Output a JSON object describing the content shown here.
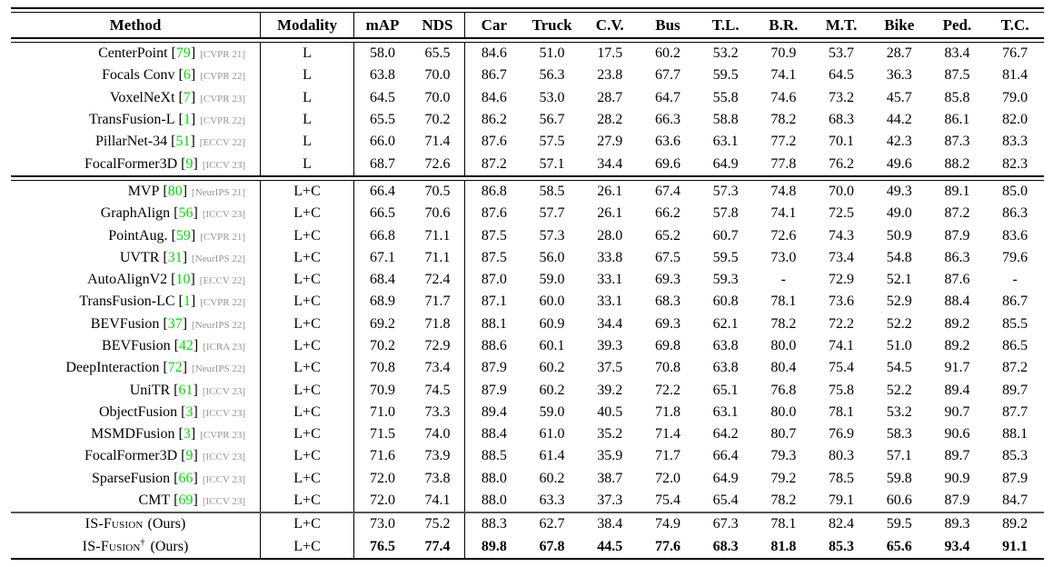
{
  "format": {
    "bracket_open": "[",
    "bracket_close": "]"
  },
  "colors": {
    "ref_green": "#00dd00",
    "venue_gray": "#949494",
    "rule_black": "#000000",
    "rule_gray": "#555555"
  },
  "table": {
    "columns": [
      "Method",
      "Modality",
      "mAP",
      "NDS",
      "Car",
      "Truck",
      "C.V.",
      "Bus",
      "T.L.",
      "B.R.",
      "M.T.",
      "Bike",
      "Ped.",
      "T.C."
    ],
    "sections": [
      {
        "name": "lidar-only",
        "rows": [
          {
            "method": "CenterPoint",
            "ref": "79",
            "venue": "[CVPR 21]",
            "modality": "L",
            "values": [
              "58.0",
              "65.5",
              "84.6",
              "51.0",
              "17.5",
              "60.2",
              "53.2",
              "70.9",
              "53.7",
              "28.7",
              "83.4",
              "76.7"
            ],
            "bold": false,
            "smallcaps": false,
            "sup": "",
            "suffix": "",
            "center": false
          },
          {
            "method": "Focals Conv",
            "ref": "6",
            "venue": "[CVPR 22]",
            "modality": "L",
            "values": [
              "63.8",
              "70.0",
              "86.7",
              "56.3",
              "23.8",
              "67.7",
              "59.5",
              "74.1",
              "64.5",
              "36.3",
              "87.5",
              "81.4"
            ],
            "bold": false,
            "smallcaps": false,
            "sup": "",
            "suffix": "",
            "center": false
          },
          {
            "method": "VoxelNeXt",
            "ref": "7",
            "venue": "[CVPR 23]",
            "modality": "L",
            "values": [
              "64.5",
              "70.0",
              "84.6",
              "53.0",
              "28.7",
              "64.7",
              "55.8",
              "74.6",
              "73.2",
              "45.7",
              "85.8",
              "79.0"
            ],
            "bold": false,
            "smallcaps": false,
            "sup": "",
            "suffix": "",
            "center": false
          },
          {
            "method": "TransFusion-L",
            "ref": "1",
            "venue": "[CVPR 22]",
            "modality": "L",
            "values": [
              "65.5",
              "70.2",
              "86.2",
              "56.7",
              "28.2",
              "66.3",
              "58.8",
              "78.2",
              "68.3",
              "44.2",
              "86.1",
              "82.0"
            ],
            "bold": false,
            "smallcaps": false,
            "sup": "",
            "suffix": "",
            "center": false
          },
          {
            "method": "PillarNet-34",
            "ref": "51",
            "venue": "[ECCV 22]",
            "modality": "L",
            "values": [
              "66.0",
              "71.4",
              "87.6",
              "57.5",
              "27.9",
              "63.6",
              "63.1",
              "77.2",
              "70.1",
              "42.3",
              "87.3",
              "83.3"
            ],
            "bold": false,
            "smallcaps": false,
            "sup": "",
            "suffix": "",
            "center": false
          },
          {
            "method": "FocalFormer3D",
            "ref": "9",
            "venue": "[ICCV 23]",
            "modality": "L",
            "values": [
              "68.7",
              "72.6",
              "87.2",
              "57.1",
              "34.4",
              "69.6",
              "64.9",
              "77.8",
              "76.2",
              "49.6",
              "88.2",
              "82.3"
            ],
            "bold": false,
            "smallcaps": false,
            "sup": "",
            "suffix": "",
            "center": false
          }
        ]
      },
      {
        "name": "lidar-camera",
        "rows": [
          {
            "method": "MVP",
            "ref": "80",
            "venue": "[NeurIPS 21]",
            "modality": "L+C",
            "values": [
              "66.4",
              "70.5",
              "86.8",
              "58.5",
              "26.1",
              "67.4",
              "57.3",
              "74.8",
              "70.0",
              "49.3",
              "89.1",
              "85.0"
            ],
            "bold": false,
            "smallcaps": false,
            "sup": "",
            "suffix": "",
            "center": false
          },
          {
            "method": "GraphAlign",
            "ref": "56",
            "venue": "[ICCV 23]",
            "modality": "L+C",
            "values": [
              "66.5",
              "70.6",
              "87.6",
              "57.7",
              "26.1",
              "66.2",
              "57.8",
              "74.1",
              "72.5",
              "49.0",
              "87.2",
              "86.3"
            ],
            "bold": false,
            "smallcaps": false,
            "sup": "",
            "suffix": "",
            "center": false
          },
          {
            "method": "PointAug.",
            "ref": "59",
            "venue": "[CVPR 21]",
            "modality": "L+C",
            "values": [
              "66.8",
              "71.1",
              "87.5",
              "57.3",
              "28.0",
              "65.2",
              "60.7",
              "72.6",
              "74.3",
              "50.9",
              "87.9",
              "83.6"
            ],
            "bold": false,
            "smallcaps": false,
            "sup": "",
            "suffix": "",
            "center": false
          },
          {
            "method": "UVTR",
            "ref": "31",
            "venue": "[NeurIPS 22]",
            "modality": "L+C",
            "values": [
              "67.1",
              "71.1",
              "87.5",
              "56.0",
              "33.8",
              "67.5",
              "59.5",
              "73.0",
              "73.4",
              "54.8",
              "86.3",
              "79.6"
            ],
            "bold": false,
            "smallcaps": false,
            "sup": "",
            "suffix": "",
            "center": false
          },
          {
            "method": "AutoAlignV2",
            "ref": "10",
            "venue": "[ECCV 22]",
            "modality": "L+C",
            "values": [
              "68.4",
              "72.4",
              "87.0",
              "59.0",
              "33.1",
              "69.3",
              "59.3",
              "-",
              "72.9",
              "52.1",
              "87.6",
              "-"
            ],
            "bold": false,
            "smallcaps": false,
            "sup": "",
            "suffix": "",
            "center": false
          },
          {
            "method": "TransFusion-LC",
            "ref": "1",
            "venue": "[CVPR 22]",
            "modality": "L+C",
            "values": [
              "68.9",
              "71.7",
              "87.1",
              "60.0",
              "33.1",
              "68.3",
              "60.8",
              "78.1",
              "73.6",
              "52.9",
              "88.4",
              "86.7"
            ],
            "bold": false,
            "smallcaps": false,
            "sup": "",
            "suffix": "",
            "center": false
          },
          {
            "method": "BEVFusion",
            "ref": "37",
            "venue": "[NeurIPS 22]",
            "modality": "L+C",
            "values": [
              "69.2",
              "71.8",
              "88.1",
              "60.9",
              "34.4",
              "69.3",
              "62.1",
              "78.2",
              "72.2",
              "52.2",
              "89.2",
              "85.5"
            ],
            "bold": false,
            "smallcaps": false,
            "sup": "",
            "suffix": "",
            "center": false
          },
          {
            "method": "BEVFusion",
            "ref": "42",
            "venue": "[ICRA 23]",
            "modality": "L+C",
            "values": [
              "70.2",
              "72.9",
              "88.6",
              "60.1",
              "39.3",
              "69.8",
              "63.8",
              "80.0",
              "74.1",
              "51.0",
              "89.2",
              "86.5"
            ],
            "bold": false,
            "smallcaps": false,
            "sup": "",
            "suffix": "",
            "center": false
          },
          {
            "method": "DeepInteraction",
            "ref": "72",
            "venue": "[NeurIPS 22]",
            "modality": "L+C",
            "values": [
              "70.8",
              "73.4",
              "87.9",
              "60.2",
              "37.5",
              "70.8",
              "63.8",
              "80.4",
              "75.4",
              "54.5",
              "91.7",
              "87.2"
            ],
            "bold": false,
            "smallcaps": false,
            "sup": "",
            "suffix": "",
            "center": false
          },
          {
            "method": "UniTR",
            "ref": "61",
            "venue": "[ICCV 23]",
            "modality": "L+C",
            "values": [
              "70.9",
              "74.5",
              "87.9",
              "60.2",
              "39.2",
              "72.2",
              "65.1",
              "76.8",
              "75.8",
              "52.2",
              "89.4",
              "89.7"
            ],
            "bold": false,
            "smallcaps": false,
            "sup": "",
            "suffix": "",
            "center": false
          },
          {
            "method": "ObjectFusion",
            "ref": "3",
            "venue": "[ICCV 23]",
            "modality": "L+C",
            "values": [
              "71.0",
              "73.3",
              "89.4",
              "59.0",
              "40.5",
              "71.8",
              "63.1",
              "80.0",
              "78.1",
              "53.2",
              "90.7",
              "87.7"
            ],
            "bold": false,
            "smallcaps": false,
            "sup": "",
            "suffix": "",
            "center": false
          },
          {
            "method": "MSMDFusion",
            "ref": "3",
            "venue": "[CVPR 23]",
            "modality": "L+C",
            "values": [
              "71.5",
              "74.0",
              "88.4",
              "61.0",
              "35.2",
              "71.4",
              "64.2",
              "80.7",
              "76.9",
              "58.3",
              "90.6",
              "88.1"
            ],
            "bold": false,
            "smallcaps": false,
            "sup": "",
            "suffix": "",
            "center": false
          },
          {
            "method": "FocalFormer3D",
            "ref": "9",
            "venue": "[ICCV 23]",
            "modality": "L+C",
            "values": [
              "71.6",
              "73.9",
              "88.5",
              "61.4",
              "35.9",
              "71.7",
              "66.4",
              "79.3",
              "80.3",
              "57.1",
              "89.7",
              "85.3"
            ],
            "bold": false,
            "smallcaps": false,
            "sup": "",
            "suffix": "",
            "center": false
          },
          {
            "method": "SparseFusion",
            "ref": "66",
            "venue": "[ICCV 23]",
            "modality": "L+C",
            "values": [
              "72.0",
              "73.8",
              "88.0",
              "60.2",
              "38.7",
              "72.0",
              "64.9",
              "79.2",
              "78.5",
              "59.8",
              "90.9",
              "87.9"
            ],
            "bold": false,
            "smallcaps": false,
            "sup": "",
            "suffix": "",
            "center": false
          },
          {
            "method": "CMT",
            "ref": "69",
            "venue": "[ICCV 23]",
            "modality": "L+C",
            "values": [
              "72.0",
              "74.1",
              "88.0",
              "63.3",
              "37.3",
              "75.4",
              "65.4",
              "78.2",
              "79.1",
              "60.6",
              "87.9",
              "84.7"
            ],
            "bold": false,
            "smallcaps": false,
            "sup": "",
            "suffix": "",
            "center": false
          }
        ]
      },
      {
        "name": "ours",
        "rows": [
          {
            "method": "IS-Fusion",
            "ref": "",
            "venue": "",
            "modality": "L+C",
            "values": [
              "73.0",
              "75.2",
              "88.3",
              "62.7",
              "38.4",
              "74.9",
              "67.3",
              "78.1",
              "82.4",
              "59.5",
              "89.3",
              "89.2"
            ],
            "bold": false,
            "smallcaps": true,
            "sup": "",
            "suffix": "(Ours)",
            "center": true
          },
          {
            "method": "IS-Fusion",
            "ref": "",
            "venue": "",
            "modality": "L+C",
            "values": [
              "76.5",
              "77.4",
              "89.8",
              "67.8",
              "44.5",
              "77.6",
              "68.3",
              "81.8",
              "85.3",
              "65.6",
              "93.4",
              "91.1"
            ],
            "bold": true,
            "smallcaps": true,
            "sup": "†",
            "suffix": "(Ours)",
            "center": true
          }
        ]
      }
    ]
  }
}
